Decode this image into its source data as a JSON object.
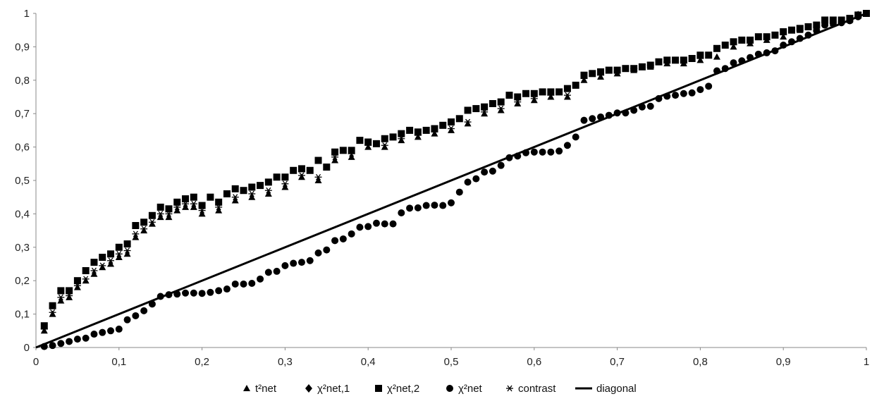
{
  "chart_data": {
    "type": "scatter",
    "title": "",
    "xlabel": "",
    "ylabel": "",
    "xlim": [
      0,
      1
    ],
    "ylim": [
      0,
      1
    ],
    "x_ticks": [
      "0",
      "0,1",
      "0,2",
      "0,3",
      "0,4",
      "0,5",
      "0,6",
      "0,7",
      "0,8",
      "0,9",
      "1"
    ],
    "y_ticks": [
      "0",
      "0,1",
      "0,2",
      "0,3",
      "0,4",
      "0,5",
      "0,6",
      "0,7",
      "0,8",
      "0,9",
      "1"
    ],
    "grid": false,
    "legend_position": "bottom",
    "colors": {
      "marker": "#000000",
      "axis": "#888888"
    },
    "series": [
      {
        "name": "t²net",
        "marker": "triangle",
        "x": [
          0.01,
          0.02,
          0.03,
          0.04,
          0.05,
          0.06,
          0.07,
          0.08,
          0.09,
          0.1,
          0.11,
          0.12,
          0.13,
          0.14,
          0.15,
          0.16,
          0.17,
          0.18,
          0.19,
          0.2,
          0.22,
          0.24,
          0.26,
          0.28,
          0.3,
          0.32,
          0.34,
          0.36,
          0.38,
          0.4,
          0.42,
          0.44,
          0.46,
          0.48,
          0.5,
          0.52,
          0.54,
          0.56,
          0.58,
          0.6,
          0.62,
          0.64,
          0.66,
          0.68,
          0.7,
          0.72,
          0.74,
          0.76,
          0.78,
          0.8,
          0.82,
          0.84,
          0.86,
          0.88,
          0.9,
          0.92,
          0.94,
          0.96,
          0.98,
          1.0
        ],
        "y": [
          0.05,
          0.1,
          0.14,
          0.15,
          0.18,
          0.2,
          0.22,
          0.24,
          0.25,
          0.27,
          0.28,
          0.33,
          0.35,
          0.37,
          0.39,
          0.39,
          0.41,
          0.42,
          0.42,
          0.4,
          0.41,
          0.44,
          0.45,
          0.46,
          0.48,
          0.51,
          0.5,
          0.56,
          0.57,
          0.6,
          0.6,
          0.62,
          0.63,
          0.64,
          0.65,
          0.67,
          0.7,
          0.71,
          0.73,
          0.74,
          0.75,
          0.75,
          0.8,
          0.81,
          0.82,
          0.83,
          0.84,
          0.85,
          0.85,
          0.86,
          0.87,
          0.9,
          0.91,
          0.92,
          0.93,
          0.95,
          0.96,
          0.97,
          0.98,
          1.0
        ]
      },
      {
        "name": "χ²net,1",
        "marker": "diamond",
        "x": [
          0.94,
          0.95,
          0.96,
          0.97,
          0.98,
          0.99
        ],
        "y": [
          0.96,
          0.97,
          0.975,
          0.975,
          0.98,
          0.995
        ]
      },
      {
        "name": "χ²net,2",
        "marker": "square",
        "x": [
          0.01,
          0.02,
          0.03,
          0.04,
          0.05,
          0.06,
          0.07,
          0.08,
          0.09,
          0.1,
          0.11,
          0.12,
          0.13,
          0.14,
          0.15,
          0.16,
          0.17,
          0.18,
          0.19,
          0.2,
          0.21,
          0.22,
          0.23,
          0.24,
          0.25,
          0.26,
          0.27,
          0.28,
          0.29,
          0.3,
          0.31,
          0.32,
          0.33,
          0.34,
          0.35,
          0.36,
          0.37,
          0.38,
          0.39,
          0.4,
          0.41,
          0.42,
          0.43,
          0.44,
          0.45,
          0.46,
          0.47,
          0.48,
          0.49,
          0.5,
          0.51,
          0.52,
          0.53,
          0.54,
          0.55,
          0.56,
          0.57,
          0.58,
          0.59,
          0.6,
          0.61,
          0.62,
          0.63,
          0.64,
          0.65,
          0.66,
          0.67,
          0.68,
          0.69,
          0.7,
          0.71,
          0.72,
          0.73,
          0.74,
          0.75,
          0.76,
          0.77,
          0.78,
          0.79,
          0.8,
          0.81,
          0.82,
          0.83,
          0.84,
          0.85,
          0.86,
          0.87,
          0.88,
          0.89,
          0.9,
          0.91,
          0.92,
          0.93,
          0.94,
          0.95,
          0.96,
          0.97,
          0.98,
          0.99,
          1.0
        ],
        "y": [
          0.065,
          0.125,
          0.17,
          0.17,
          0.2,
          0.23,
          0.255,
          0.27,
          0.28,
          0.3,
          0.31,
          0.365,
          0.375,
          0.395,
          0.42,
          0.415,
          0.435,
          0.445,
          0.45,
          0.425,
          0.45,
          0.435,
          0.46,
          0.475,
          0.47,
          0.48,
          0.485,
          0.495,
          0.51,
          0.51,
          0.53,
          0.535,
          0.53,
          0.56,
          0.54,
          0.585,
          0.59,
          0.59,
          0.62,
          0.615,
          0.61,
          0.625,
          0.63,
          0.64,
          0.65,
          0.645,
          0.65,
          0.655,
          0.665,
          0.675,
          0.685,
          0.71,
          0.715,
          0.72,
          0.73,
          0.735,
          0.755,
          0.75,
          0.76,
          0.76,
          0.765,
          0.765,
          0.765,
          0.775,
          0.785,
          0.815,
          0.82,
          0.825,
          0.83,
          0.83,
          0.835,
          0.835,
          0.84,
          0.845,
          0.855,
          0.86,
          0.86,
          0.86,
          0.865,
          0.875,
          0.875,
          0.895,
          0.905,
          0.915,
          0.92,
          0.92,
          0.93,
          0.93,
          0.935,
          0.945,
          0.95,
          0.955,
          0.96,
          0.965,
          0.98,
          0.98,
          0.98,
          0.985,
          0.995,
          1.0
        ]
      },
      {
        "name": "χ²net",
        "marker": "circle",
        "x": [
          0.01,
          0.02,
          0.03,
          0.04,
          0.05,
          0.06,
          0.07,
          0.08,
          0.09,
          0.1,
          0.11,
          0.12,
          0.13,
          0.14,
          0.15,
          0.16,
          0.17,
          0.18,
          0.19,
          0.2,
          0.21,
          0.22,
          0.23,
          0.24,
          0.25,
          0.26,
          0.27,
          0.28,
          0.29,
          0.3,
          0.31,
          0.32,
          0.33,
          0.34,
          0.35,
          0.36,
          0.37,
          0.38,
          0.39,
          0.4,
          0.41,
          0.42,
          0.43,
          0.44,
          0.45,
          0.46,
          0.47,
          0.48,
          0.49,
          0.5,
          0.51,
          0.52,
          0.53,
          0.54,
          0.55,
          0.56,
          0.57,
          0.58,
          0.59,
          0.6,
          0.61,
          0.62,
          0.63,
          0.64,
          0.65,
          0.66,
          0.67,
          0.68,
          0.69,
          0.7,
          0.71,
          0.72,
          0.73,
          0.74,
          0.75,
          0.76,
          0.77,
          0.78,
          0.79,
          0.8,
          0.81,
          0.82,
          0.83,
          0.84,
          0.85,
          0.86,
          0.87,
          0.88,
          0.89,
          0.9,
          0.91,
          0.92,
          0.93,
          0.94,
          0.95,
          0.96,
          0.97,
          0.98,
          0.99,
          1.0
        ],
        "y": [
          0.003,
          0.006,
          0.012,
          0.018,
          0.025,
          0.028,
          0.04,
          0.045,
          0.05,
          0.055,
          0.083,
          0.095,
          0.11,
          0.13,
          0.153,
          0.158,
          0.16,
          0.163,
          0.163,
          0.162,
          0.165,
          0.17,
          0.175,
          0.19,
          0.19,
          0.192,
          0.205,
          0.225,
          0.228,
          0.245,
          0.252,
          0.255,
          0.26,
          0.283,
          0.292,
          0.32,
          0.325,
          0.34,
          0.36,
          0.362,
          0.372,
          0.37,
          0.37,
          0.403,
          0.417,
          0.418,
          0.425,
          0.426,
          0.425,
          0.433,
          0.465,
          0.495,
          0.505,
          0.525,
          0.528,
          0.545,
          0.568,
          0.573,
          0.583,
          0.585,
          0.585,
          0.585,
          0.588,
          0.605,
          0.63,
          0.68,
          0.685,
          0.69,
          0.695,
          0.702,
          0.702,
          0.71,
          0.72,
          0.722,
          0.745,
          0.752,
          0.755,
          0.76,
          0.762,
          0.772,
          0.782,
          0.828,
          0.835,
          0.852,
          0.858,
          0.868,
          0.878,
          0.882,
          0.888,
          0.905,
          0.915,
          0.925,
          0.935,
          0.948,
          0.965,
          0.97,
          0.972,
          0.978,
          0.99,
          1.0
        ]
      },
      {
        "name": "contrast",
        "marker": "asterisk",
        "x": [
          0.01,
          0.02,
          0.03,
          0.04,
          0.05,
          0.06,
          0.07,
          0.08,
          0.09,
          0.1,
          0.11,
          0.12,
          0.13,
          0.14,
          0.15,
          0.16,
          0.17,
          0.18,
          0.19,
          0.2,
          0.22,
          0.24,
          0.26,
          0.28,
          0.3,
          0.32,
          0.34,
          0.36,
          0.38,
          0.4,
          0.42,
          0.44,
          0.46,
          0.48,
          0.5,
          0.52,
          0.54,
          0.56,
          0.58,
          0.6,
          0.62,
          0.64,
          0.66,
          0.68,
          0.7,
          0.72,
          0.74,
          0.76,
          0.78,
          0.8
        ],
        "y": [
          0.055,
          0.105,
          0.15,
          0.155,
          0.185,
          0.205,
          0.23,
          0.245,
          0.26,
          0.28,
          0.29,
          0.34,
          0.355,
          0.375,
          0.4,
          0.4,
          0.42,
          0.43,
          0.43,
          0.41,
          0.42,
          0.45,
          0.46,
          0.47,
          0.49,
          0.515,
          0.51,
          0.57,
          0.58,
          0.605,
          0.605,
          0.625,
          0.635,
          0.645,
          0.655,
          0.675,
          0.705,
          0.715,
          0.735,
          0.745,
          0.755,
          0.755,
          0.805,
          0.815,
          0.825,
          0.835,
          0.845,
          0.855,
          0.855,
          0.865
        ]
      },
      {
        "name": "diagonal",
        "marker": "line",
        "x": [
          0,
          1
        ],
        "y": [
          0,
          1
        ]
      }
    ]
  }
}
